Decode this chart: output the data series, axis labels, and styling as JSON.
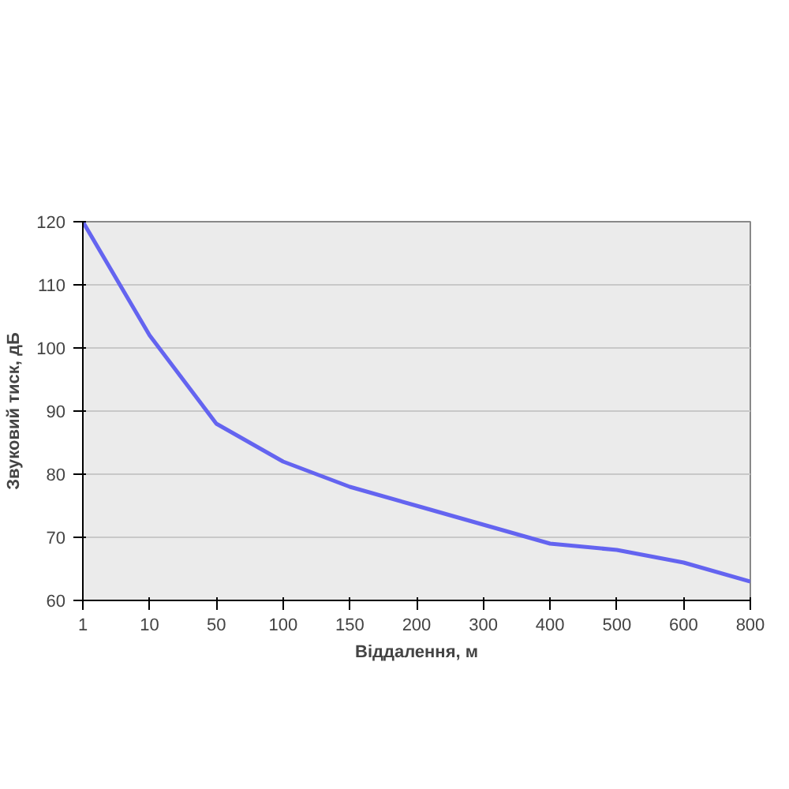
{
  "chart_data": {
    "type": "line",
    "xlabel": "Віддалення, м",
    "ylabel": "Звуковий тиск, дБ",
    "categories": [
      "1",
      "10",
      "50",
      "100",
      "150",
      "200",
      "300",
      "400",
      "500",
      "600",
      "800"
    ],
    "series": [
      {
        "color": "#6464f0",
        "values": [
          120,
          102,
          88,
          82,
          78,
          75,
          72,
          69,
          68,
          66,
          63
        ]
      }
    ],
    "ylim": [
      60,
      120
    ],
    "yticks": [
      60,
      70,
      80,
      90,
      100,
      110,
      120
    ],
    "grid": "y",
    "marker": "none",
    "line_style": "solid"
  }
}
